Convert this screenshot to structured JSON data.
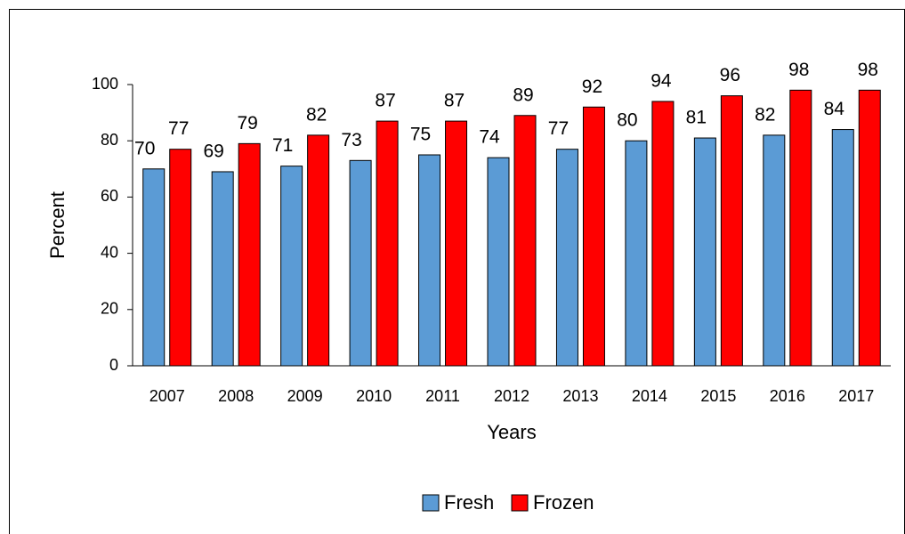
{
  "chart_data": {
    "type": "bar",
    "x_label": "Years",
    "y_label": "Percent",
    "categories": [
      "2007",
      "2008",
      "2009",
      "2010",
      "2011",
      "2012",
      "2013",
      "2014",
      "2015",
      "2016",
      "2017"
    ],
    "series": [
      {
        "name": "Fresh",
        "color": "#5b9bd5",
        "values": [
          70,
          69,
          71,
          73,
          75,
          74,
          77,
          80,
          81,
          82,
          84
        ]
      },
      {
        "name": "Frozen",
        "color": "#ff0000",
        "values": [
          77,
          79,
          82,
          87,
          87,
          89,
          92,
          94,
          96,
          98,
          98
        ]
      }
    ],
    "ylim": [
      0,
      100
    ],
    "yticks": [
      0,
      20,
      40,
      60,
      80,
      100
    ],
    "grid": false,
    "legend": "bottom"
  }
}
